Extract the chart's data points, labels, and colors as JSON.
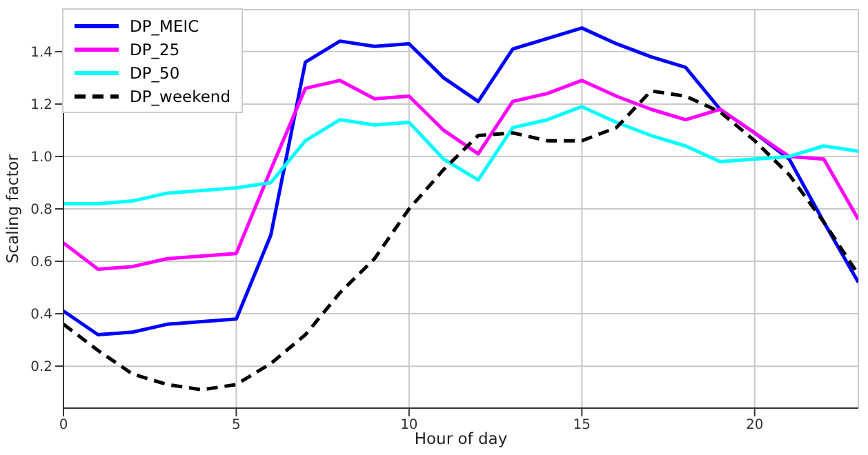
{
  "chart_data": {
    "type": "line",
    "xlabel": "Hour of day",
    "ylabel": "Scaling factor",
    "x": [
      0,
      1,
      2,
      3,
      4,
      5,
      6,
      7,
      8,
      9,
      10,
      11,
      12,
      13,
      14,
      15,
      16,
      17,
      18,
      19,
      20,
      21,
      22,
      23
    ],
    "xlim": [
      0,
      23
    ],
    "xticks": [
      0,
      5,
      10,
      15,
      20
    ],
    "ylim": [
      0.04,
      1.56
    ],
    "yticks": [
      0.2,
      0.4,
      0.6,
      0.8,
      {
        "value": 1,
        "label": "1.0"
      },
      1.2,
      1.4
    ],
    "grid": true,
    "legend": "top left",
    "marker": "none",
    "series": [
      {
        "name": "DP_MEIC",
        "color": "#0000ff",
        "values": [
          0.41,
          0.32,
          0.33,
          0.36,
          0.37,
          0.38,
          0.7,
          1.36,
          1.44,
          1.42,
          1.43,
          1.3,
          1.21,
          1.41,
          1.45,
          1.49,
          1.43,
          1.38,
          1.34,
          1.18,
          1.09,
          0.99,
          0.75,
          0.52
        ]
      },
      {
        "name": "DP_25",
        "color": "#ff00ff",
        "values": [
          0.67,
          0.57,
          0.58,
          0.61,
          0.62,
          0.63,
          0.95,
          1.26,
          1.29,
          1.22,
          1.23,
          1.1,
          1.01,
          1.21,
          1.24,
          1.29,
          1.23,
          1.18,
          1.14,
          1.18,
          1.09,
          1.0,
          0.99,
          0.76
        ]
      },
      {
        "name": "DP_50",
        "color": "#00ffff",
        "values": [
          0.82,
          0.82,
          0.83,
          0.86,
          0.87,
          0.88,
          0.9,
          1.06,
          1.14,
          1.12,
          1.13,
          0.99,
          0.91,
          1.11,
          1.14,
          1.19,
          1.13,
          1.08,
          1.04,
          0.98,
          0.99,
          1.0,
          1.04,
          1.02
        ]
      },
      {
        "name": "DP_weekend",
        "color": "#000000",
        "line_style": "dashed",
        "values": [
          0.36,
          0.26,
          0.17,
          0.13,
          0.11,
          0.13,
          0.21,
          0.32,
          0.48,
          0.61,
          0.8,
          0.95,
          1.08,
          1.09,
          1.06,
          1.06,
          1.11,
          1.25,
          1.23,
          1.17,
          1.06,
          0.93,
          0.75,
          0.55
        ]
      }
    ]
  }
}
